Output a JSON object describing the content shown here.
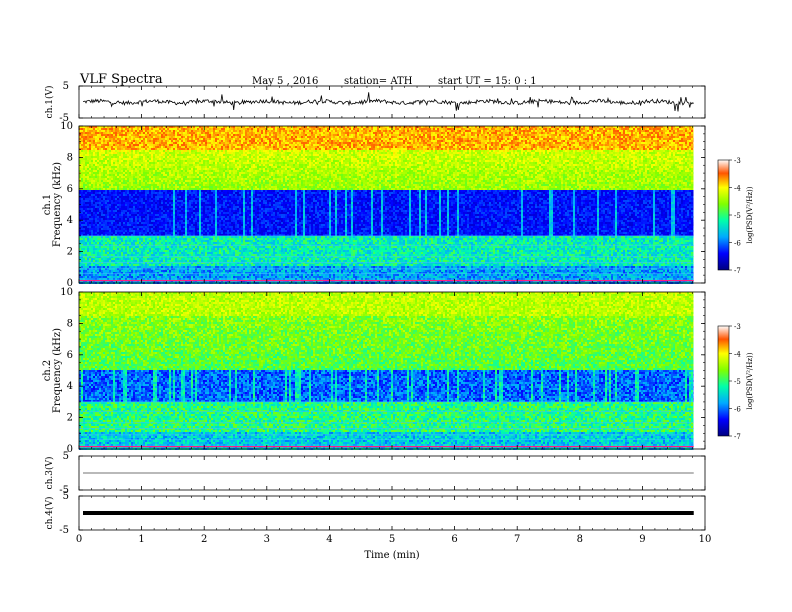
{
  "header": {
    "title": "VLF  Spectra",
    "date": "May 5  , 2016",
    "station": "station= ATH",
    "start": "start  UT =   15: 0  : 1"
  },
  "chart_data": [
    {
      "type": "line",
      "panel": "ch1-waveform",
      "ylabel": "ch.1(V)",
      "ylim": [
        -5,
        5
      ],
      "yticks": [
        5,
        -5
      ],
      "baseline": 0,
      "data_xrange": [
        0,
        9.82
      ]
    },
    {
      "type": "heatmap",
      "panel": "ch1-spectrogram",
      "ylabel": "ch.1\nFrequency (kHz)",
      "ylim": [
        0,
        10
      ],
      "yticks": [
        0,
        2,
        4,
        6,
        8,
        10
      ],
      "colorbar": {
        "label": "log(PSD(V²/Hz))",
        "range": [
          -7,
          -3
        ],
        "ticks": [
          -3,
          -4,
          -5,
          -6,
          -7
        ]
      }
    },
    {
      "type": "heatmap",
      "panel": "ch2-spectrogram",
      "ylabel": "ch.2\nFrequency (kHz)",
      "ylim": [
        0,
        10
      ],
      "yticks": [
        0,
        2,
        4,
        6,
        8,
        10
      ],
      "colorbar": {
        "label": "log(PSD(V²/Hz))",
        "range": [
          -7,
          -3
        ],
        "ticks": [
          -3,
          -4,
          -5,
          -6,
          -7
        ]
      }
    },
    {
      "type": "line",
      "panel": "ch3-waveform",
      "ylabel": "ch.3(V)",
      "ylim": [
        -5,
        5
      ],
      "yticks": [
        5,
        -5
      ],
      "baseline": 0,
      "data_xrange": [
        0,
        9.82
      ]
    },
    {
      "type": "line",
      "panel": "ch4-waveform",
      "ylabel": "ch.4(V)",
      "ylim": [
        -5,
        5
      ],
      "yticks": [
        5,
        -5
      ],
      "baseline": 0,
      "data_xrange": [
        0,
        9.82
      ]
    }
  ],
  "xaxis": {
    "label": "Time  (min)",
    "range": [
      0,
      10
    ],
    "ticks": [
      "0",
      "1",
      "2",
      "3",
      "4",
      "5",
      "6",
      "7",
      "8",
      "9",
      "10"
    ]
  }
}
